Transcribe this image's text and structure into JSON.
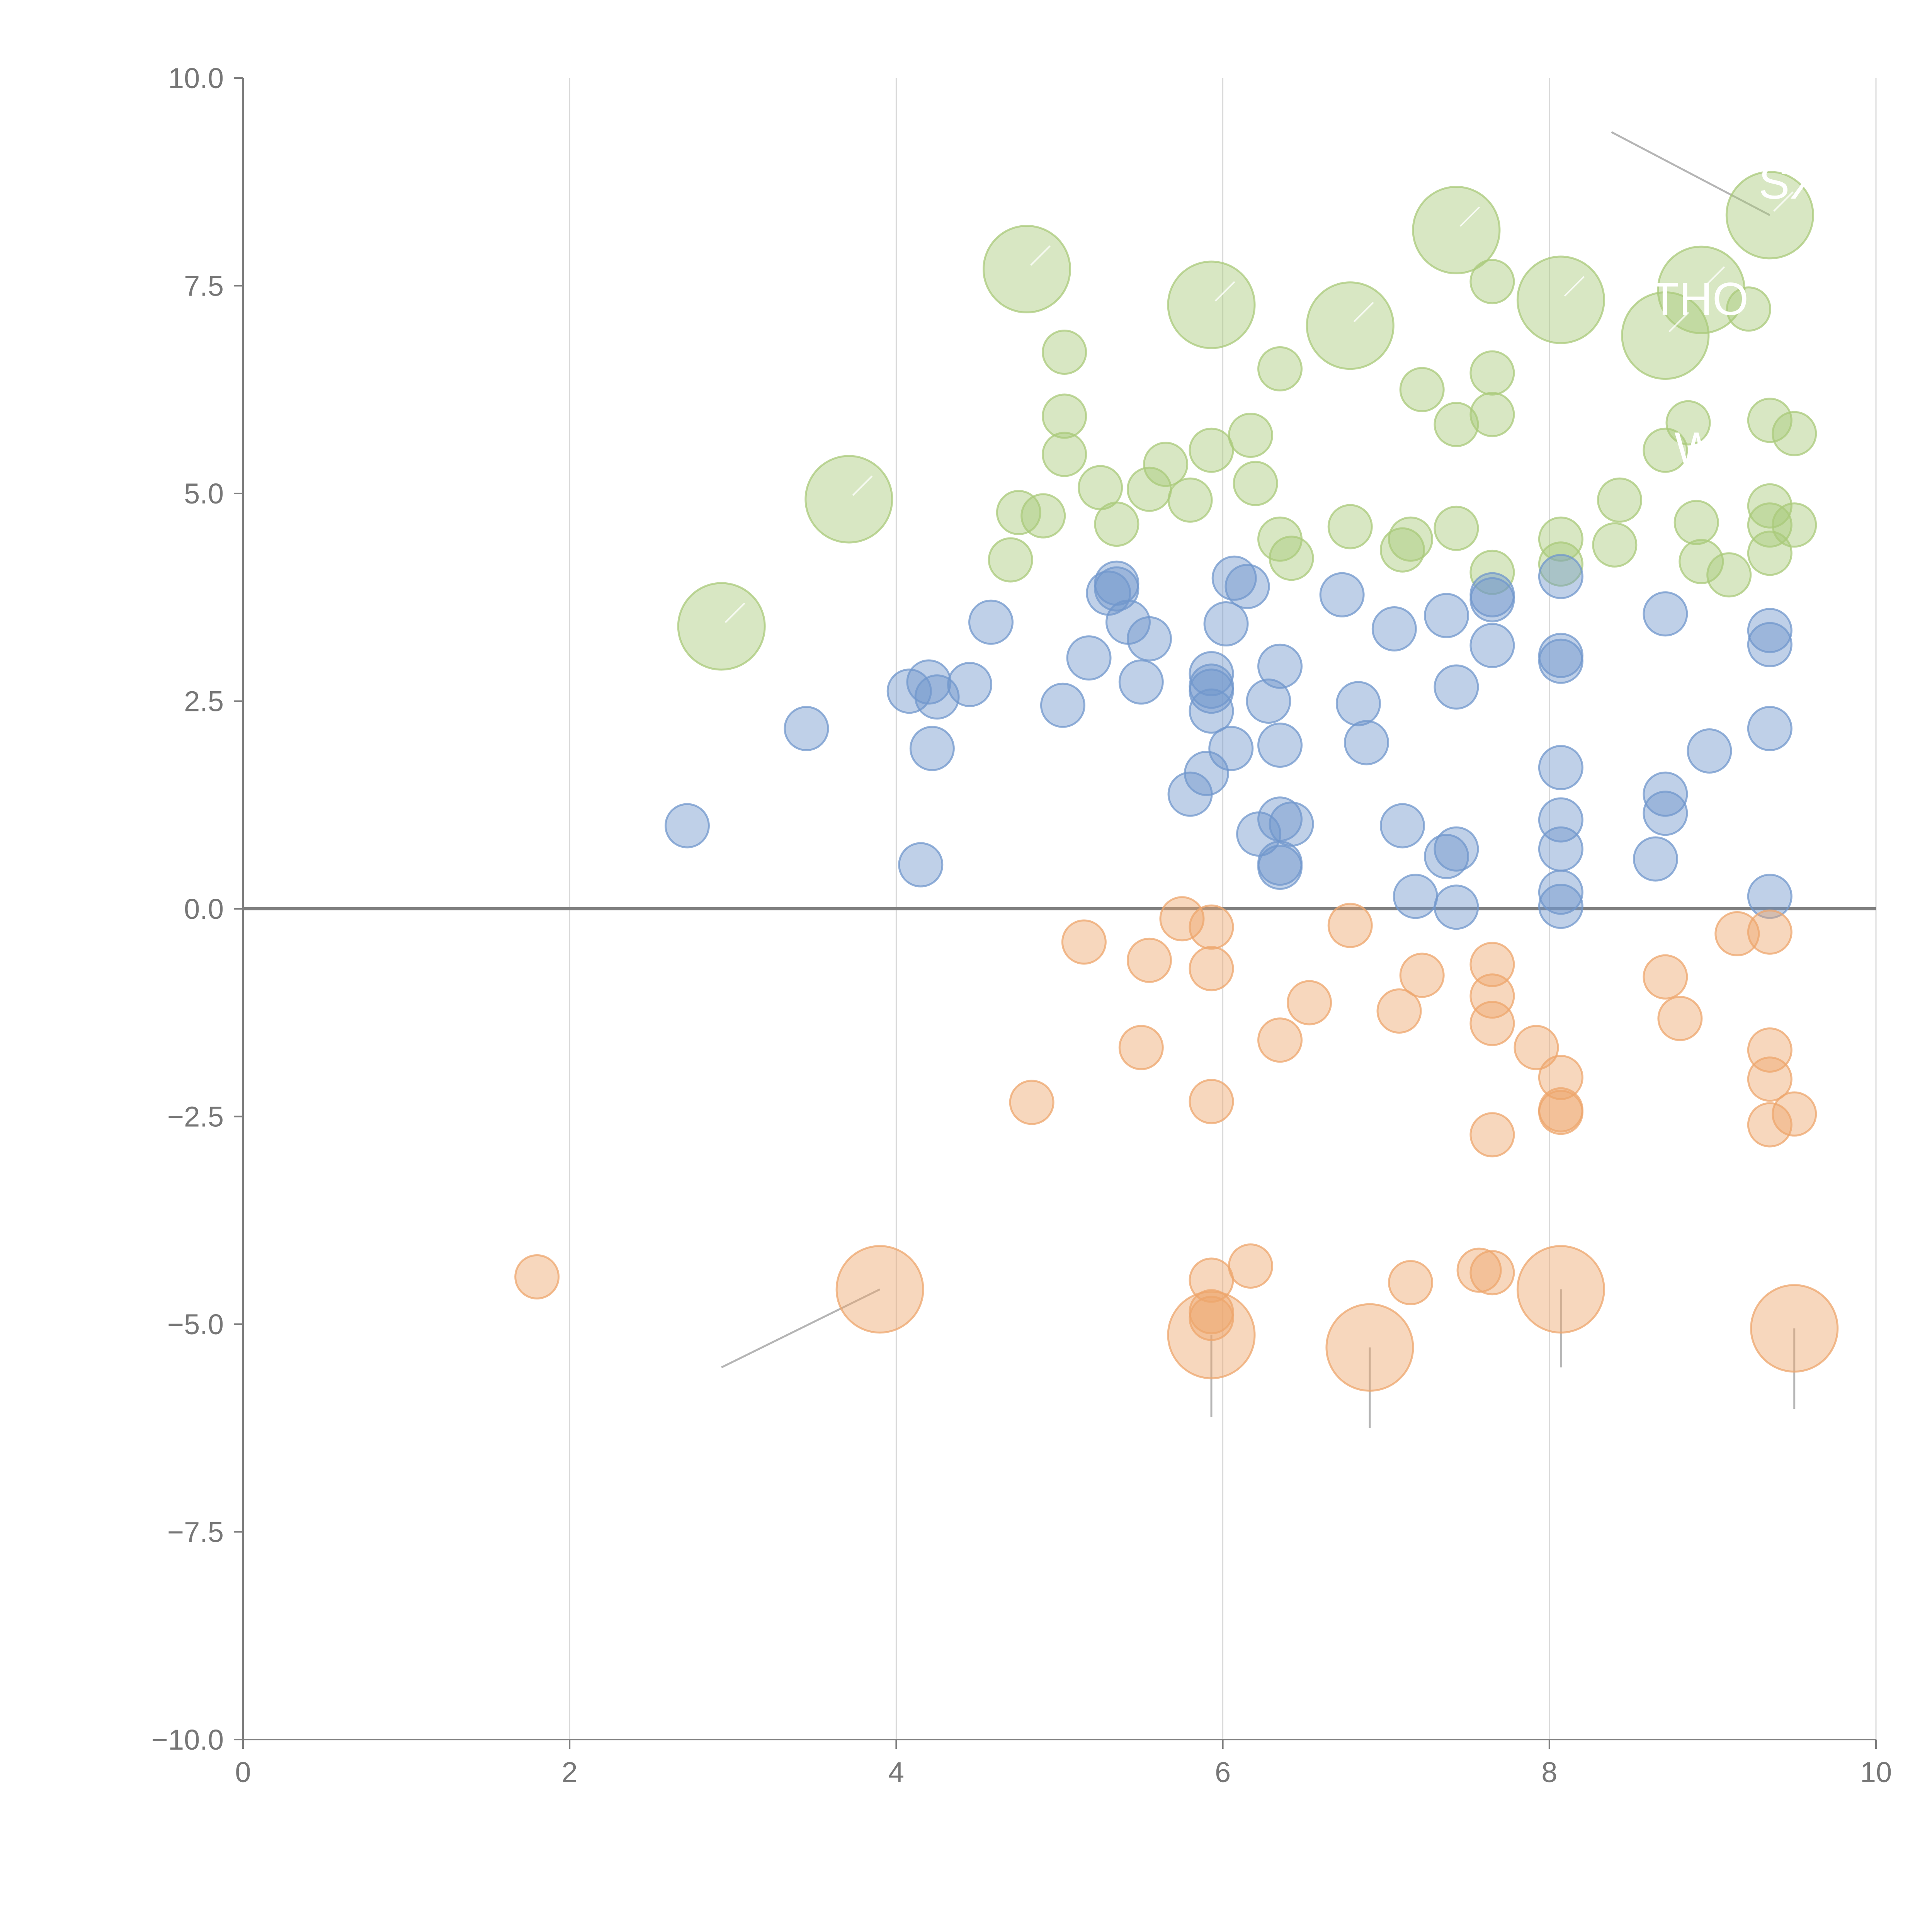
{
  "chart_data": {
    "type": "scatter",
    "title": "",
    "xlabel": "",
    "ylabel": "",
    "xlim": [
      0,
      10
    ],
    "ylim": [
      -10,
      10
    ],
    "grid": "vertical",
    "x_ticks": [
      "0",
      "2",
      "4",
      "6",
      "8",
      "10"
    ],
    "y_ticks": [
      "10.0",
      "7.5",
      "5.0",
      "2.5",
      "0.0",
      "−2.5",
      "−5.0",
      "−7.5",
      "−10.0"
    ],
    "x_tick_values": [
      0,
      2,
      4,
      6,
      8,
      10
    ],
    "y_tick_values": [
      10,
      7.5,
      5,
      2.5,
      0,
      -2.5,
      -5,
      -7.5,
      -10
    ],
    "series": [
      {
        "name": "green",
        "color": "#a9c97a",
        "points": [
          {
            "x": 2.93,
            "y": 3.4,
            "r": 2
          },
          {
            "x": 3.71,
            "y": 4.93,
            "r": 2
          },
          {
            "x": 4.8,
            "y": 7.7,
            "r": 2
          },
          {
            "x": 5.93,
            "y": 7.27,
            "r": 2
          },
          {
            "x": 6.78,
            "y": 7.02,
            "r": 2
          },
          {
            "x": 7.43,
            "y": 8.17,
            "r": 2
          },
          {
            "x": 8.07,
            "y": 7.33,
            "r": 2
          },
          {
            "x": 8.71,
            "y": 6.9,
            "r": 2
          },
          {
            "x": 8.93,
            "y": 7.45,
            "r": 2
          },
          {
            "x": 9.35,
            "y": 8.35,
            "r": 2
          },
          {
            "x": 5.03,
            "y": 6.7,
            "r": 1
          },
          {
            "x": 5.03,
            "y": 5.93,
            "r": 1
          },
          {
            "x": 5.03,
            "y": 5.47,
            "r": 1
          },
          {
            "x": 4.7,
            "y": 4.2,
            "r": 1
          },
          {
            "x": 4.75,
            "y": 4.77,
            "r": 1
          },
          {
            "x": 4.9,
            "y": 4.73,
            "r": 1
          },
          {
            "x": 5.25,
            "y": 5.07,
            "r": 1
          },
          {
            "x": 5.35,
            "y": 4.63,
            "r": 1
          },
          {
            "x": 5.55,
            "y": 5.05,
            "r": 1
          },
          {
            "x": 5.65,
            "y": 5.35,
            "r": 1
          },
          {
            "x": 5.8,
            "y": 4.92,
            "r": 1
          },
          {
            "x": 5.93,
            "y": 5.52,
            "r": 1
          },
          {
            "x": 6.17,
            "y": 5.7,
            "r": 1
          },
          {
            "x": 6.2,
            "y": 5.12,
            "r": 1
          },
          {
            "x": 6.35,
            "y": 6.5,
            "r": 1
          },
          {
            "x": 6.35,
            "y": 4.45,
            "r": 1
          },
          {
            "x": 6.42,
            "y": 4.22,
            "r": 1
          },
          {
            "x": 6.78,
            "y": 4.6,
            "r": 1
          },
          {
            "x": 7.1,
            "y": 4.32,
            "r": 1
          },
          {
            "x": 7.15,
            "y": 4.45,
            "r": 1
          },
          {
            "x": 7.22,
            "y": 6.25,
            "r": 1
          },
          {
            "x": 7.43,
            "y": 5.83,
            "r": 1
          },
          {
            "x": 7.43,
            "y": 4.58,
            "r": 1
          },
          {
            "x": 7.65,
            "y": 7.55,
            "r": 1
          },
          {
            "x": 7.65,
            "y": 6.45,
            "r": 1
          },
          {
            "x": 7.65,
            "y": 5.95,
            "r": 1
          },
          {
            "x": 7.65,
            "y": 4.05,
            "r": 1
          },
          {
            "x": 8.07,
            "y": 4.45,
            "r": 1
          },
          {
            "x": 8.07,
            "y": 4.15,
            "r": 1
          },
          {
            "x": 8.4,
            "y": 4.38,
            "r": 1
          },
          {
            "x": 8.43,
            "y": 4.92,
            "r": 1
          },
          {
            "x": 8.71,
            "y": 5.52,
            "r": 1
          },
          {
            "x": 8.85,
            "y": 5.85,
            "r": 1
          },
          {
            "x": 8.9,
            "y": 4.65,
            "r": 1
          },
          {
            "x": 8.93,
            "y": 4.18,
            "r": 1
          },
          {
            "x": 9.1,
            "y": 4.02,
            "r": 1
          },
          {
            "x": 9.22,
            "y": 7.22,
            "r": 1
          },
          {
            "x": 9.35,
            "y": 5.88,
            "r": 1
          },
          {
            "x": 9.35,
            "y": 4.85,
            "r": 1
          },
          {
            "x": 9.35,
            "y": 4.62,
            "r": 1
          },
          {
            "x": 9.35,
            "y": 4.28,
            "r": 1
          },
          {
            "x": 9.5,
            "y": 5.72,
            "r": 1
          },
          {
            "x": 9.5,
            "y": 4.62,
            "r": 1
          }
        ]
      },
      {
        "name": "blue",
        "color": "#7097cc",
        "points": [
          {
            "x": 2.72,
            "y": 1.0,
            "r": 1
          },
          {
            "x": 3.45,
            "y": 2.17,
            "r": 1
          },
          {
            "x": 4.08,
            "y": 2.62,
            "r": 1
          },
          {
            "x": 4.15,
            "y": 0.53,
            "r": 1
          },
          {
            "x": 4.2,
            "y": 2.73,
            "r": 1
          },
          {
            "x": 4.22,
            "y": 1.93,
            "r": 1
          },
          {
            "x": 4.25,
            "y": 2.55,
            "r": 1
          },
          {
            "x": 4.45,
            "y": 2.7,
            "r": 1
          },
          {
            "x": 4.58,
            "y": 3.45,
            "r": 1
          },
          {
            "x": 5.02,
            "y": 2.45,
            "r": 1
          },
          {
            "x": 5.18,
            "y": 3.02,
            "r": 1
          },
          {
            "x": 5.3,
            "y": 3.8,
            "r": 1
          },
          {
            "x": 5.35,
            "y": 3.92,
            "r": 1
          },
          {
            "x": 5.35,
            "y": 3.85,
            "r": 1
          },
          {
            "x": 5.42,
            "y": 3.45,
            "r": 1
          },
          {
            "x": 5.5,
            "y": 2.73,
            "r": 1
          },
          {
            "x": 5.55,
            "y": 3.25,
            "r": 1
          },
          {
            "x": 5.8,
            "y": 1.38,
            "r": 1
          },
          {
            "x": 5.9,
            "y": 1.63,
            "r": 1
          },
          {
            "x": 5.93,
            "y": 2.83,
            "r": 1
          },
          {
            "x": 5.93,
            "y": 2.68,
            "r": 1
          },
          {
            "x": 5.93,
            "y": 2.62,
            "r": 1
          },
          {
            "x": 5.93,
            "y": 2.38,
            "r": 1
          },
          {
            "x": 6.02,
            "y": 3.43,
            "r": 1
          },
          {
            "x": 6.05,
            "y": 1.93,
            "r": 1
          },
          {
            "x": 6.07,
            "y": 3.98,
            "r": 1
          },
          {
            "x": 6.15,
            "y": 3.88,
            "r": 1
          },
          {
            "x": 6.22,
            "y": 0.9,
            "r": 1
          },
          {
            "x": 6.28,
            "y": 2.5,
            "r": 1
          },
          {
            "x": 6.35,
            "y": 2.92,
            "r": 1
          },
          {
            "x": 6.35,
            "y": 1.97,
            "r": 1
          },
          {
            "x": 6.35,
            "y": 1.08,
            "r": 1
          },
          {
            "x": 6.35,
            "y": 0.55,
            "r": 1
          },
          {
            "x": 6.35,
            "y": 0.5,
            "r": 1
          },
          {
            "x": 6.42,
            "y": 1.02,
            "r": 1
          },
          {
            "x": 6.73,
            "y": 3.78,
            "r": 1
          },
          {
            "x": 6.83,
            "y": 2.47,
            "r": 1
          },
          {
            "x": 6.88,
            "y": 2.0,
            "r": 1
          },
          {
            "x": 7.05,
            "y": 3.37,
            "r": 1
          },
          {
            "x": 7.1,
            "y": 1.0,
            "r": 1
          },
          {
            "x": 7.18,
            "y": 0.15,
            "r": 1
          },
          {
            "x": 7.37,
            "y": 3.53,
            "r": 1
          },
          {
            "x": 7.37,
            "y": 0.63,
            "r": 1
          },
          {
            "x": 7.43,
            "y": 2.67,
            "r": 1
          },
          {
            "x": 7.43,
            "y": 0.72,
            "r": 1
          },
          {
            "x": 7.43,
            "y": 0.02,
            "r": 1
          },
          {
            "x": 7.65,
            "y": 3.78,
            "r": 1
          },
          {
            "x": 7.65,
            "y": 3.72,
            "r": 1
          },
          {
            "x": 7.65,
            "y": 3.17,
            "r": 1
          },
          {
            "x": 8.07,
            "y": 4.0,
            "r": 1
          },
          {
            "x": 8.07,
            "y": 3.05,
            "r": 1
          },
          {
            "x": 8.07,
            "y": 2.98,
            "r": 1
          },
          {
            "x": 8.07,
            "y": 1.7,
            "r": 1
          },
          {
            "x": 8.07,
            "y": 1.07,
            "r": 1
          },
          {
            "x": 8.07,
            "y": 0.72,
            "r": 1
          },
          {
            "x": 8.07,
            "y": 0.2,
            "r": 1
          },
          {
            "x": 8.07,
            "y": 0.03,
            "r": 1
          },
          {
            "x": 8.65,
            "y": 0.6,
            "r": 1
          },
          {
            "x": 8.71,
            "y": 3.55,
            "r": 1
          },
          {
            "x": 8.71,
            "y": 1.38,
            "r": 1
          },
          {
            "x": 8.71,
            "y": 1.15,
            "r": 1
          },
          {
            "x": 8.98,
            "y": 1.9,
            "r": 1
          },
          {
            "x": 9.35,
            "y": 3.35,
            "r": 1
          },
          {
            "x": 9.35,
            "y": 3.18,
            "r": 1
          },
          {
            "x": 9.35,
            "y": 2.17,
            "r": 1
          },
          {
            "x": 9.35,
            "y": 0.15,
            "r": 1
          }
        ]
      },
      {
        "name": "orange",
        "color": "#eda66c",
        "points": [
          {
            "x": 1.8,
            "y": -4.43,
            "r": 1
          },
          {
            "x": 3.9,
            "y": -4.58,
            "r": 2
          },
          {
            "x": 4.83,
            "y": -2.33,
            "r": 1
          },
          {
            "x": 5.15,
            "y": -0.4,
            "r": 1
          },
          {
            "x": 5.5,
            "y": -1.67,
            "r": 1
          },
          {
            "x": 5.55,
            "y": -0.62,
            "r": 1
          },
          {
            "x": 5.75,
            "y": -0.12,
            "r": 1
          },
          {
            "x": 5.93,
            "y": -0.22,
            "r": 1
          },
          {
            "x": 5.93,
            "y": -0.72,
            "r": 1
          },
          {
            "x": 5.93,
            "y": -2.32,
            "r": 1
          },
          {
            "x": 5.93,
            "y": -4.47,
            "r": 1
          },
          {
            "x": 5.93,
            "y": -4.85,
            "r": 1
          },
          {
            "x": 5.93,
            "y": -4.93,
            "r": 1
          },
          {
            "x": 5.93,
            "y": -5.13,
            "r": 2
          },
          {
            "x": 6.17,
            "y": -4.3,
            "r": 1
          },
          {
            "x": 6.35,
            "y": -1.58,
            "r": 1
          },
          {
            "x": 6.53,
            "y": -1.13,
            "r": 1
          },
          {
            "x": 6.78,
            "y": -0.2,
            "r": 1
          },
          {
            "x": 6.9,
            "y": -5.28,
            "r": 2
          },
          {
            "x": 7.08,
            "y": -1.23,
            "r": 1
          },
          {
            "x": 7.15,
            "y": -4.5,
            "r": 1
          },
          {
            "x": 7.22,
            "y": -0.8,
            "r": 1
          },
          {
            "x": 7.57,
            "y": -4.35,
            "r": 1
          },
          {
            "x": 7.65,
            "y": -0.67,
            "r": 1
          },
          {
            "x": 7.65,
            "y": -1.05,
            "r": 1
          },
          {
            "x": 7.65,
            "y": -1.38,
            "r": 1
          },
          {
            "x": 7.65,
            "y": -2.72,
            "r": 1
          },
          {
            "x": 7.65,
            "y": -4.38,
            "r": 1
          },
          {
            "x": 7.92,
            "y": -1.67,
            "r": 1
          },
          {
            "x": 8.07,
            "y": -2.03,
            "r": 1
          },
          {
            "x": 8.07,
            "y": -2.42,
            "r": 1
          },
          {
            "x": 8.07,
            "y": -2.45,
            "r": 1
          },
          {
            "x": 8.07,
            "y": -4.58,
            "r": 2
          },
          {
            "x": 8.71,
            "y": -0.82,
            "r": 1
          },
          {
            "x": 8.8,
            "y": -1.32,
            "r": 1
          },
          {
            "x": 9.15,
            "y": -0.3,
            "r": 1
          },
          {
            "x": 9.35,
            "y": -0.28,
            "r": 1
          },
          {
            "x": 9.35,
            "y": -1.7,
            "r": 1
          },
          {
            "x": 9.35,
            "y": -2.05,
            "r": 1
          },
          {
            "x": 9.35,
            "y": -2.6,
            "r": 1
          },
          {
            "x": 9.5,
            "y": -2.47,
            "r": 1
          },
          {
            "x": 9.5,
            "y": -5.05,
            "r": 2
          }
        ]
      }
    ],
    "leader_lines": [
      {
        "from": [
          3.9,
          -4.58
        ],
        "to": [
          2.93,
          -5.52
        ]
      },
      {
        "from": [
          5.93,
          -5.13
        ],
        "to": [
          5.93,
          -6.12
        ]
      },
      {
        "from": [
          6.9,
          -5.28
        ],
        "to": [
          6.9,
          -6.25
        ]
      },
      {
        "from": [
          8.07,
          -4.58
        ],
        "to": [
          8.07,
          -5.52
        ]
      },
      {
        "from": [
          9.5,
          -5.05
        ],
        "to": [
          9.5,
          -6.02
        ]
      },
      {
        "from": [
          9.35,
          8.35
        ],
        "to": [
          8.38,
          9.35
        ]
      }
    ],
    "annotations": [
      {
        "text": "SXL",
        "x": 9.55,
        "y": 8.55
      },
      {
        "text": "THO",
        "x": 8.92,
        "y": 7.15
      },
      {
        "text": "W",
        "x": 8.9,
        "y": 5.35
      }
    ]
  }
}
